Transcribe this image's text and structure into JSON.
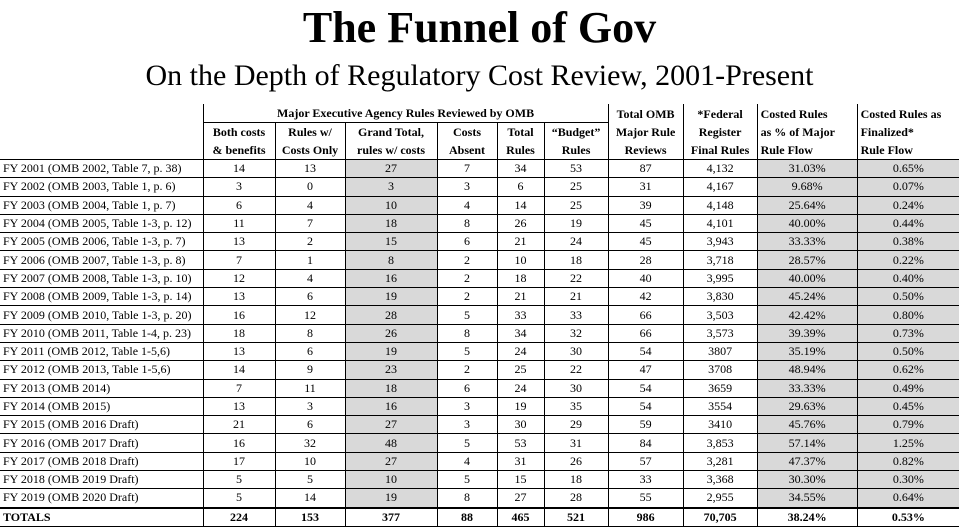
{
  "header": {
    "title": "The Funnel of Gov",
    "subtitle": "On the Depth of Regulatory Cost Review, 2001-Present"
  },
  "table": {
    "group_header": "Major Executive Agency Rules Reviewed by OMB",
    "columns": [
      [
        "Both costs",
        "& benefits"
      ],
      [
        "Rules w/",
        "Costs Only"
      ],
      [
        "Grand Total,",
        "rules w/ costs"
      ],
      [
        "Costs",
        "Absent"
      ],
      [
        "Total",
        "Rules"
      ],
      [
        "“Budget”",
        "Rules"
      ],
      [
        "Total OMB",
        "Major Rule",
        "Reviews"
      ],
      [
        "*Federal",
        "Register",
        "Final Rules"
      ],
      [
        "Costed Rules",
        "as % of Major",
        "Rule Flow"
      ],
      [
        "Costed Rules as",
        "Finalized*",
        "Rule Flow"
      ]
    ],
    "rows": [
      [
        "FY 2001 (OMB 2002, Table 7, p. 38)",
        "14",
        "13",
        "27",
        "7",
        "34",
        "53",
        "87",
        "4,132",
        "31.03%",
        "0.65%"
      ],
      [
        "FY 2002 (OMB 2003, Table 1, p. 6)",
        "3",
        "0",
        "3",
        "3",
        "6",
        "25",
        "31",
        "4,167",
        "9.68%",
        "0.07%"
      ],
      [
        "FY 2003 (OMB 2004, Table 1, p. 7)",
        "6",
        "4",
        "10",
        "4",
        "14",
        "25",
        "39",
        "4,148",
        "25.64%",
        "0.24%"
      ],
      [
        "FY 2004 (OMB 2005, Table 1-3, p. 12)",
        "11",
        "7",
        "18",
        "8",
        "26",
        "19",
        "45",
        "4,101",
        "40.00%",
        "0.44%"
      ],
      [
        "FY 2005 (OMB 2006, Table 1-3, p. 7)",
        "13",
        "2",
        "15",
        "6",
        "21",
        "24",
        "45",
        "3,943",
        "33.33%",
        "0.38%"
      ],
      [
        "FY 2006 (OMB 2007, Table 1-3, p. 8)",
        "7",
        "1",
        "8",
        "2",
        "10",
        "18",
        "28",
        "3,718",
        "28.57%",
        "0.22%"
      ],
      [
        "FY 2007 (OMB 2008, Table 1-3, p. 10)",
        "12",
        "4",
        "16",
        "2",
        "18",
        "22",
        "40",
        "3,995",
        "40.00%",
        "0.40%"
      ],
      [
        "FY 2008 (OMB 2009, Table 1-3, p. 14)",
        "13",
        "6",
        "19",
        "2",
        "21",
        "21",
        "42",
        "3,830",
        "45.24%",
        "0.50%"
      ],
      [
        "FY 2009 (OMB 2010, Table 1-3, p. 20)",
        "16",
        "12",
        "28",
        "5",
        "33",
        "33",
        "66",
        "3,503",
        "42.42%",
        "0.80%"
      ],
      [
        "FY 2010 (OMB 2011, Table 1-4, p. 23)",
        "18",
        "8",
        "26",
        "8",
        "34",
        "32",
        "66",
        "3,573",
        "39.39%",
        "0.73%"
      ],
      [
        "FY 2011 (OMB 2012, Table 1-5,6)",
        "13",
        "6",
        "19",
        "5",
        "24",
        "30",
        "54",
        "3807",
        "35.19%",
        "0.50%"
      ],
      [
        "FY 2012 (OMB 2013, Table 1-5,6)",
        "14",
        "9",
        "23",
        "2",
        "25",
        "22",
        "47",
        "3708",
        "48.94%",
        "0.62%"
      ],
      [
        "FY 2013 (OMB 2014)",
        "7",
        "11",
        "18",
        "6",
        "24",
        "30",
        "54",
        "3659",
        "33.33%",
        "0.49%"
      ],
      [
        "FY 2014 (OMB 2015)",
        "13",
        "3",
        "16",
        "3",
        "19",
        "35",
        "54",
        "3554",
        "29.63%",
        "0.45%"
      ],
      [
        "FY 2015 (OMB 2016 Draft)",
        "21",
        "6",
        "27",
        "3",
        "30",
        "29",
        "59",
        "3410",
        "45.76%",
        "0.79%"
      ],
      [
        "FY 2016 (OMB 2017 Draft)",
        "16",
        "32",
        "48",
        "5",
        "53",
        "31",
        "84",
        "3,853",
        "57.14%",
        "1.25%"
      ],
      [
        "FY 2017 (OMB 2018 Draft)",
        "17",
        "10",
        "27",
        "4",
        "31",
        "26",
        "57",
        "3,281",
        "47.37%",
        "0.82%"
      ],
      [
        "FY 2018 (OMB 2019 Draft)",
        "5",
        "5",
        "10",
        "5",
        "15",
        "18",
        "33",
        "3,368",
        "30.30%",
        "0.30%"
      ],
      [
        "FY 2019 (OMB 2020 Draft)",
        "5",
        "14",
        "19",
        "8",
        "27",
        "28",
        "55",
        "2,955",
        "34.55%",
        "0.64%"
      ]
    ],
    "totals": [
      "TOTALS",
      "224",
      "153",
      "377",
      "88",
      "465",
      "521",
      "986",
      "70,705",
      "38.24%",
      "0.53%"
    ]
  }
}
